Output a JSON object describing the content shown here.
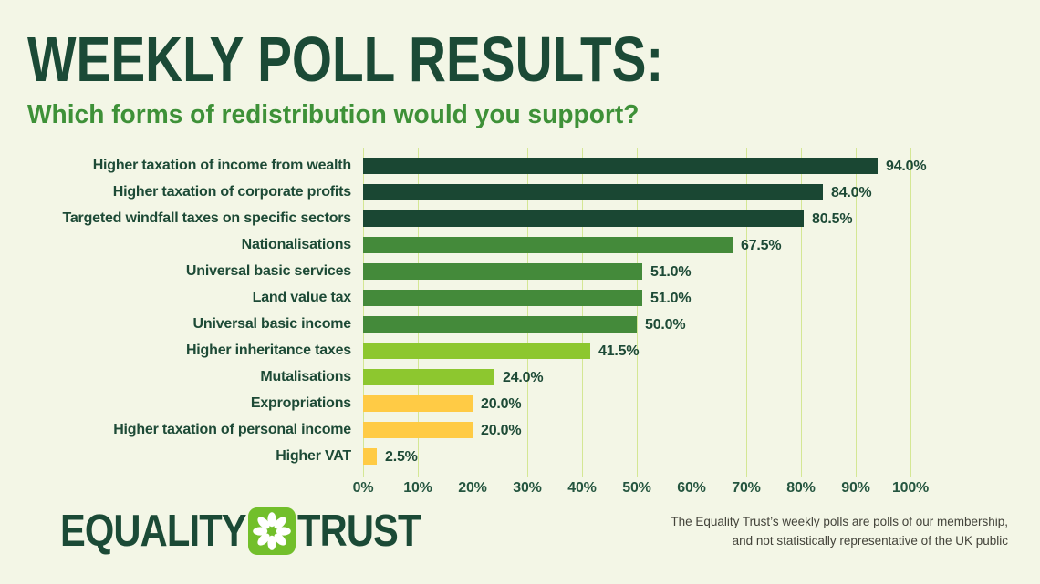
{
  "header": {
    "title": "WEEKLY POLL RESULTS:",
    "subtitle": "Which forms of redistribution would you support?"
  },
  "chart_data": {
    "type": "bar",
    "orientation": "horizontal",
    "categories": [
      "Higher taxation of income from wealth",
      "Higher taxation of corporate profits",
      "Targeted windfall taxes on specific sectors",
      "Nationalisations",
      "Universal basic services",
      "Land value tax",
      "Universal basic income",
      "Higher inheritance taxes",
      "Mutalisations",
      "Expropriations",
      "Higher taxation of personal income",
      "Higher VAT"
    ],
    "values": [
      94.0,
      84.0,
      80.5,
      67.5,
      51.0,
      51.0,
      50.0,
      41.5,
      24.0,
      20.0,
      20.0,
      2.5
    ],
    "value_labels": [
      "94.0%",
      "84.0%",
      "80.5%",
      "67.5%",
      "51.0%",
      "51.0%",
      "50.0%",
      "41.5%",
      "24.0%",
      "20.0%",
      "20.0%",
      "2.5%"
    ],
    "bar_colors": [
      "#1a4733",
      "#1a4733",
      "#1a4733",
      "#448a3a",
      "#448a3a",
      "#448a3a",
      "#448a3a",
      "#8dc72f",
      "#8dc72f",
      "#ffcb45",
      "#ffcb45",
      "#ffcb45"
    ],
    "x_ticks": [
      "0%",
      "10%",
      "20%",
      "30%",
      "40%",
      "50%",
      "60%",
      "70%",
      "80%",
      "90%",
      "100%"
    ],
    "xlim": [
      0,
      100
    ],
    "grid": true,
    "gridline_color": "#d4e794",
    "legend": "none",
    "title": "WEEKLY POLL RESULTS:",
    "subtitle": "Which forms of redistribution would you support?"
  },
  "footer": {
    "logo": {
      "text_left": "EQUALITY",
      "text_right": "TRUST",
      "icon_background": "#72bf2b",
      "icon_petal_color": "#ffffff"
    },
    "disclaimer_line1": "The Equality Trust’s weekly polls are polls of our membership,",
    "disclaimer_line2": "and not statistically representative of the UK public"
  },
  "colors": {
    "page_background": "#f3f6e6",
    "title": "#1b4a36",
    "subtitle": "#3e9138",
    "label_text": "#1d4a36",
    "bar_dark": "#1a4733",
    "bar_medium": "#448a3a",
    "bar_bright": "#8dc72f",
    "bar_yellow": "#ffcb45"
  }
}
